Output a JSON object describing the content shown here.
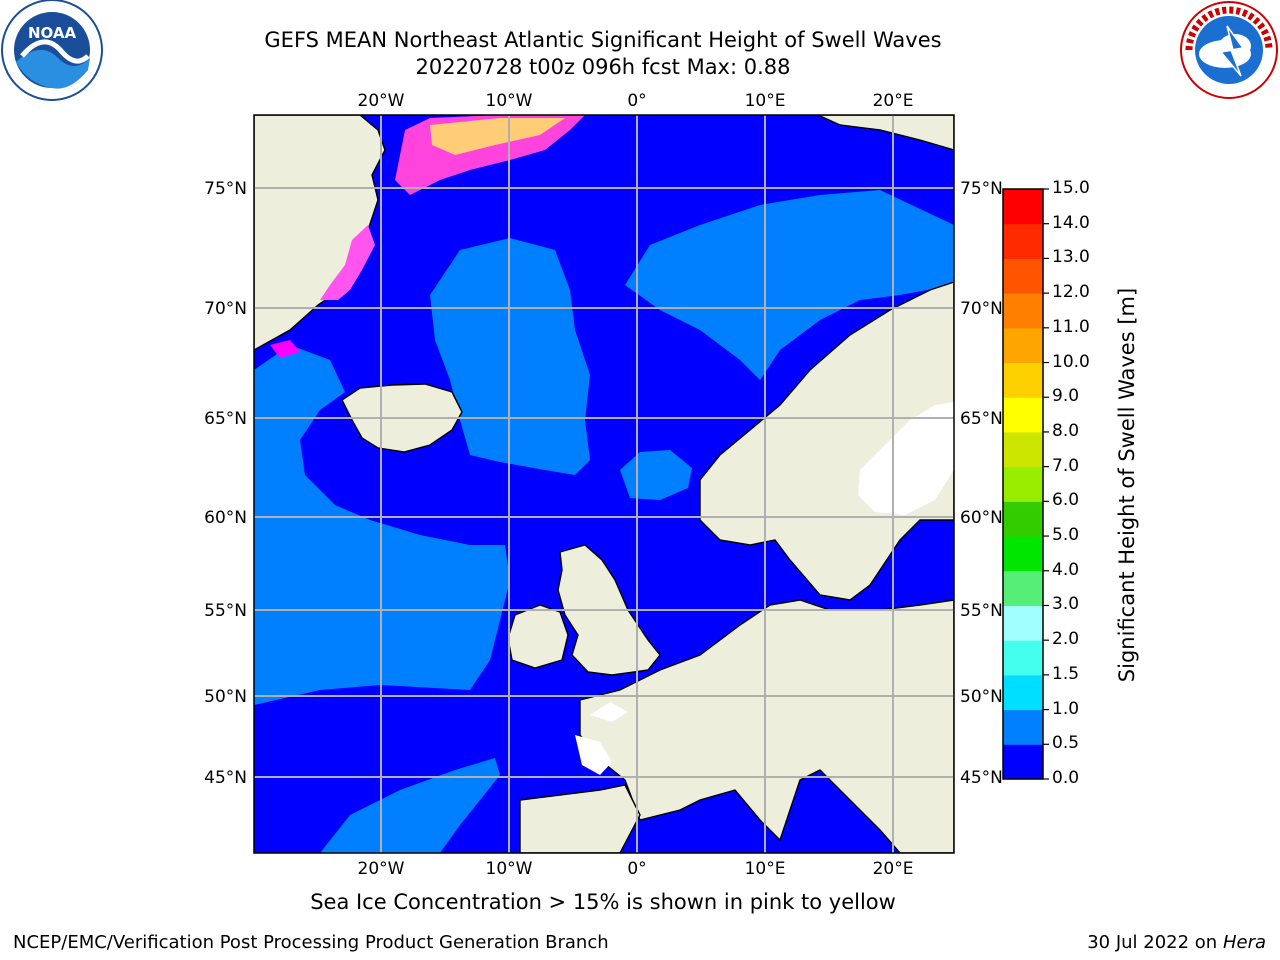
{
  "header": {
    "title_line1": "GEFS MEAN Northeast Atlantic Significant Height of Swell Waves",
    "title_line2": "20220728 t00z 096h fcst   Max: 0.88"
  },
  "logos": {
    "noaa": {
      "text": "NOAA",
      "ring_text": "NATIONAL OCEANIC AND ATMOSPHERIC ADMINISTRATION · U.S. DEPARTMENT OF COMMERCE"
    },
    "nws": {
      "ring_text": "NATIONAL WEATHER SERVICE"
    }
  },
  "map": {
    "lon_labels": [
      "20°W",
      "10°W",
      "0°",
      "10°E",
      "20°E"
    ],
    "lat_labels": [
      "75°N",
      "70°N",
      "65°N",
      "60°N",
      "55°N",
      "50°N",
      "45°N"
    ],
    "lon_values": [
      -20,
      -10,
      0,
      10,
      20
    ],
    "lat_values": [
      75,
      70,
      65,
      60,
      55,
      50,
      45
    ],
    "extent": {
      "lon_min": -30,
      "lon_max": 24.7,
      "lat_min": 41,
      "lat_max": 78
    },
    "colors": {
      "ocean_low": "#0000ff",
      "ocean_mid": "#0080ff",
      "land": "#eeeedd",
      "grid": "#b0b0b0",
      "sea_ice_pink": "#ff00ff",
      "sea_ice_yellow": "#ffe680"
    }
  },
  "colorbar": {
    "title": "Significant Height of Swell Waves [m]",
    "tick_labels": [
      "15.0",
      "14.0",
      "13.0",
      "12.0",
      "11.0",
      "10.0",
      "9.0",
      "8.0",
      "7.0",
      "6.0",
      "5.0",
      "4.0",
      "3.0",
      "2.0",
      "1.5",
      "1.0",
      "0.5",
      "0.0"
    ],
    "colors_bottom_to_top": [
      "#0000ff",
      "#0080ff",
      "#00dfff",
      "#44ffee",
      "#a0ffff",
      "#55ee77",
      "#00e600",
      "#33cc00",
      "#99ee00",
      "#cce600",
      "#ffff00",
      "#ffd000",
      "#ffa500",
      "#ff8000",
      "#ff5500",
      "#ff2a00",
      "#ff0000"
    ]
  },
  "footer": {
    "sea_ice_note": "Sea Ice Concentration > 15% is shown in pink to yellow",
    "credit_left": "NCEP/EMC/Verification Post Processing Product Generation Branch",
    "credit_date": "30 Jul 2022 on ",
    "credit_system": "Hera"
  }
}
